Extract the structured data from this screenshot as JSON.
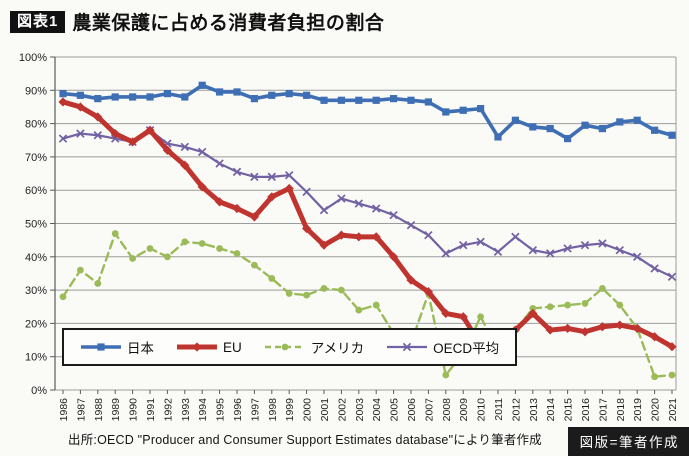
{
  "header": {
    "badge": "図表1",
    "title": "農業保護に占める消費者負担の割合"
  },
  "footer": {
    "source": "出所:OECD \"Producer and Consumer Support Estimates database\"により筆者作成",
    "credit": "図版=筆者作成"
  },
  "colors": {
    "japan": "#3e6eb4",
    "eu": "#c0342f",
    "usa": "#9bbb59",
    "oecd": "#7261a3",
    "grid": "#9c9c9c",
    "axis": "#5a5a5a",
    "axis_text": "#1f1f1f",
    "legend_border": "#1a1a1a"
  },
  "chart_data": {
    "type": "line",
    "title": "農業保護に占める消費者負担の割合",
    "xlabel": "",
    "ylabel": "",
    "ylim": [
      0,
      100
    ],
    "y_tick_step": 10,
    "y_tick_suffix": "%",
    "grid": true,
    "legend_position": "inside-bottom-left",
    "x": [
      1986,
      1987,
      1988,
      1989,
      1990,
      1991,
      1992,
      1993,
      1994,
      1995,
      1996,
      1997,
      1998,
      1999,
      2000,
      2001,
      2002,
      2003,
      2004,
      2005,
      2006,
      2007,
      2008,
      2009,
      2010,
      2011,
      2012,
      2013,
      2014,
      2015,
      2016,
      2017,
      2018,
      2019,
      2020,
      2021
    ],
    "series": [
      {
        "name": "日本",
        "key": "japan",
        "marker": "square",
        "dashed": false,
        "values": [
          89,
          88.5,
          87.5,
          88,
          88,
          88,
          89,
          88,
          91.5,
          89.5,
          89.5,
          87.5,
          88.5,
          89,
          88.5,
          87,
          87,
          87,
          87,
          87.5,
          87,
          86.5,
          83.5,
          84,
          84.5,
          76,
          81,
          79,
          78.5,
          75.5,
          79.5,
          78.5,
          80.5,
          81,
          78,
          76.5
        ]
      },
      {
        "name": "EU",
        "key": "eu",
        "marker": "diamond",
        "dashed": false,
        "values": [
          86.5,
          85,
          82,
          77,
          74.5,
          78,
          72,
          67.5,
          61,
          56.5,
          54.5,
          52,
          58,
          60.5,
          48.5,
          43.5,
          46.5,
          46,
          46,
          40,
          33,
          29.5,
          23,
          22,
          13.5,
          12.5,
          18,
          23,
          18,
          18.5,
          17.5,
          19,
          19.5,
          18.5,
          16,
          13
        ]
      },
      {
        "name": "アメリカ",
        "key": "usa",
        "marker": "circle",
        "dashed": true,
        "values": [
          28,
          36,
          32,
          47,
          39.5,
          42.5,
          40,
          44.5,
          44,
          42.5,
          41,
          37.5,
          33.5,
          29,
          28.5,
          30.5,
          30,
          24,
          25.5,
          17,
          14,
          29,
          4.5,
          11,
          22,
          12,
          18,
          24.5,
          25,
          25.5,
          26,
          30.5,
          25.5,
          18.5,
          4,
          4.5
        ]
      },
      {
        "name": "OECD平均",
        "key": "oecd",
        "marker": "x",
        "dashed": false,
        "values": [
          75.5,
          77,
          76.5,
          75.5,
          74.5,
          78,
          74,
          73,
          71.5,
          68,
          65.5,
          64,
          64,
          64.5,
          59.5,
          54,
          57.5,
          56,
          54.5,
          52.5,
          49.5,
          46.5,
          41,
          43.5,
          44.5,
          41.5,
          46,
          42,
          41,
          42.5,
          43.5,
          44,
          42,
          40,
          36.5,
          34
        ]
      }
    ]
  }
}
